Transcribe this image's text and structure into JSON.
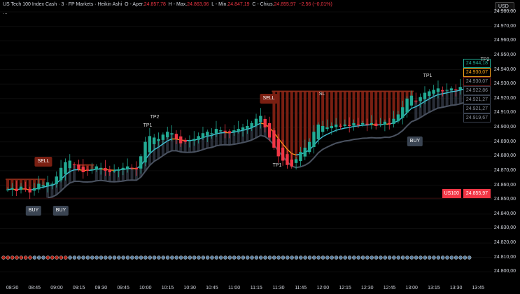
{
  "header": {
    "symbol": "US Tech 100 Index Cash",
    "interval": "3",
    "broker": "FP Markets",
    "chart_type": "Heikin Ashi",
    "open_label": "O - Aper.",
    "open": "24.857,78",
    "high_label": "H - Max.",
    "high": "24.863,06",
    "low_label": "L - Min.",
    "low": "24.847,19",
    "close_label": "C - Chius.",
    "close": "24.855,97",
    "change": "−2,56 (−0,01%)",
    "more": "..."
  },
  "currency": "USD",
  "price_axis": [
    "24.980,00",
    "24.970,00",
    "24.960,00",
    "24.950,00",
    "24.940,00",
    "24.930,00",
    "24.920,00",
    "24.910,00",
    "24.900,00",
    "24.890,00",
    "24.880,00",
    "24.870,00",
    "24.860,00",
    "24.850,00",
    "24.840,00",
    "24.830,00",
    "24.820,00",
    "24.810,00",
    "24.800,00"
  ],
  "price_tags": [
    {
      "text": "24.944,18",
      "color": "#22ab94"
    },
    {
      "text": "24.930,07",
      "color": "#f7a21b"
    },
    {
      "text": "24.930,07",
      "color": "#6b1d1d"
    },
    {
      "text": "24.922,86",
      "color": "#3a4250"
    },
    {
      "text": "24.921,27",
      "color": "#3a4250"
    },
    {
      "text": "24.921,27",
      "color": "#3a4250"
    },
    {
      "text": "24.919,67",
      "color": "#3a4250"
    }
  ],
  "symbol_tag": {
    "symbol": "US100",
    "price": "24.855,97"
  },
  "time_axis": [
    "08:30",
    "08:45",
    "09:00",
    "09:15",
    "09:30",
    "09:45",
    "10:00",
    "10:15",
    "10:30",
    "10:45",
    "11:00",
    "11:15",
    "11:30",
    "11:45",
    "12:00",
    "12:15",
    "12:30",
    "12:45",
    "13:00",
    "13:15",
    "13:30",
    "13:45"
  ],
  "signals": [
    {
      "type": "sell",
      "label": "SELL"
    },
    {
      "type": "buy",
      "label": "BUY"
    },
    {
      "type": "buy",
      "label": "BUY"
    },
    {
      "type": "sell",
      "label": "SELL"
    },
    {
      "type": "buy",
      "label": "BUY"
    }
  ],
  "markers": [
    "TP1",
    "TP2",
    "TP1",
    "SL",
    "TP1",
    "TP2"
  ],
  "closes": [
    24857,
    24858,
    24856,
    24859,
    24857,
    24855,
    24858,
    24861,
    24860,
    24862,
    24861,
    24866,
    24872,
    24876,
    24877,
    24874,
    24871,
    24869,
    24870,
    24871,
    24873,
    24872,
    24870,
    24869,
    24870,
    24871,
    24872,
    24873,
    24872,
    24871,
    24880,
    24890,
    24894,
    24893,
    24892,
    24895,
    24897,
    24896,
    24892,
    24889,
    24890,
    24891,
    24892,
    24894,
    24896,
    24897,
    24896,
    24899,
    24898,
    24897,
    24896,
    24898,
    24899,
    24900,
    24901,
    24903,
    24906,
    24908,
    24900,
    24893,
    24886,
    24880,
    24877,
    24874,
    24873,
    24878,
    24883,
    24886,
    24890,
    24897,
    24902,
    24901,
    24900,
    24901,
    24902,
    24901,
    24902,
    24901,
    24903,
    24902,
    24903,
    24902,
    24903,
    24901,
    24902,
    24904,
    24902,
    24906,
    24909,
    24914,
    24920,
    24922,
    24918,
    24921,
    24924,
    24925,
    24926,
    24927,
    24925,
    24926,
    24927,
    24926,
    24928,
    24930,
    24937,
    24944
  ],
  "colors": {
    "up": "#22ab94",
    "down": "#f23645",
    "band": "#3a4250",
    "sell_zone": "#7a1f12",
    "ma_up": "#3fc1d6",
    "ma_down": "#f7931a"
  }
}
